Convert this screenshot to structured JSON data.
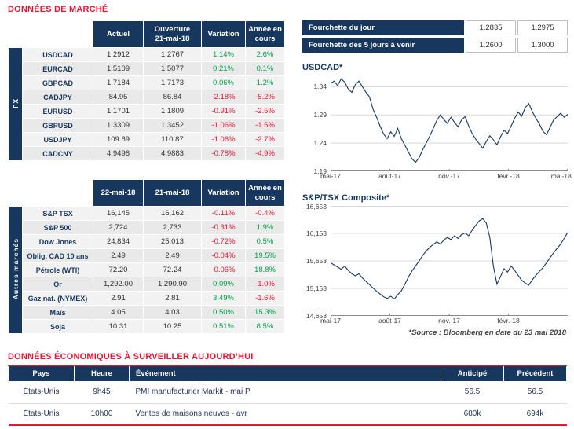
{
  "page": {
    "market_title": "DONNÉES DE MARCHÉ",
    "econ_title": "DONNÉES ÉCONOMIQUES À SURVEILLER AUJOURD’HUI",
    "source_note": "*Source : Bloomberg en date du 23 mai 2018"
  },
  "colors": {
    "navy": "#17375E",
    "red": "#E31837",
    "positive": "#00A04A",
    "negative": "#E31837",
    "grid": "#D9D9D9",
    "line": "#17375E"
  },
  "fx_table": {
    "side_label": "FX",
    "headers": [
      "Actuel",
      "Ouverture\n21-mai-18",
      "Variation",
      "Année en\ncours"
    ],
    "rows": [
      {
        "label": "USDCAD",
        "c1": "1.2912",
        "c2": "1.2767",
        "variation": "1.14%",
        "ytd": "2.6%"
      },
      {
        "label": "EURCAD",
        "c1": "1.5109",
        "c2": "1.5077",
        "variation": "0.21%",
        "ytd": "0.1%"
      },
      {
        "label": "GBPCAD",
        "c1": "1.7184",
        "c2": "1.7173",
        "variation": "0.06%",
        "ytd": "1.2%"
      },
      {
        "label": "CADJPY",
        "c1": "84.95",
        "c2": "86.84",
        "variation": "-2.18%",
        "ytd": "-5.2%"
      },
      {
        "label": "EURUSD",
        "c1": "1.1701",
        "c2": "1.1809",
        "variation": "-0.91%",
        "ytd": "-2.5%"
      },
      {
        "label": "GBPUSD",
        "c1": "1.3309",
        "c2": "1.3452",
        "variation": "-1.06%",
        "ytd": "-1.5%"
      },
      {
        "label": "USDJPY",
        "c1": "109.69",
        "c2": "110.87",
        "variation": "-1.06%",
        "ytd": "-2.7%"
      },
      {
        "label": "CADCNY",
        "c1": "4.9496",
        "c2": "4.9883",
        "variation": "-0.78%",
        "ytd": "-4.9%"
      }
    ]
  },
  "markets_table": {
    "side_label": "Autres marchés",
    "headers": [
      "22-mai-18",
      "21-mai-18",
      "Variation",
      "Année en\ncours"
    ],
    "rows": [
      {
        "label": "S&P TSX",
        "c1": "16,145",
        "c2": "16,162",
        "variation": "-0.11%",
        "ytd": "-0.4%"
      },
      {
        "label": "S&P 500",
        "c1": "2,724",
        "c2": "2,733",
        "variation": "-0.31%",
        "ytd": "1.9%"
      },
      {
        "label": "Dow Jones",
        "c1": "24,834",
        "c2": "25,013",
        "variation": "-0.72%",
        "ytd": "0.5%"
      },
      {
        "label": "Oblig. CAD 10 ans",
        "c1": "2.49",
        "c2": "2.49",
        "variation": "-0.04%",
        "ytd": "19.5%"
      },
      {
        "label": "Pétrole (WTI)",
        "c1": "72.20",
        "c2": "72.24",
        "variation": "-0.06%",
        "ytd": "18.8%"
      },
      {
        "label": "Or",
        "c1": "1,292.00",
        "c2": "1,290.90",
        "variation": "0.09%",
        "ytd": "-1.0%"
      },
      {
        "label": "Gaz nat. (NYMEX)",
        "c1": "2.91",
        "c2": "2.81",
        "variation": "3.49%",
        "ytd": "-1.6%"
      },
      {
        "label": "Maïs",
        "c1": "4.05",
        "c2": "4.03",
        "variation": "0.50%",
        "ytd": "15.3%"
      },
      {
        "label": "Soja",
        "c1": "10.31",
        "c2": "10.25",
        "variation": "0.51%",
        "ytd": "8.5%"
      }
    ]
  },
  "ranges": [
    {
      "label": "Fourchette du jour",
      "low": "1.2835",
      "high": "1.2975"
    },
    {
      "label": "Fourchette des 5 jours à venir",
      "low": "1.2600",
      "high": "1.3000"
    }
  ],
  "chart_data": [
    {
      "type": "line",
      "title": "USDCAD*",
      "ylabel": "",
      "xlabel": "",
      "ylim": [
        1.19,
        1.36
      ],
      "y_ticks": [
        {
          "label": "1.34",
          "v": 1.34
        },
        {
          "label": "1.29",
          "v": 1.29
        },
        {
          "label": "1.24",
          "v": 1.24
        },
        {
          "label": "1.19",
          "v": 1.19
        }
      ],
      "x_ticks": [
        {
          "label": "mai-17",
          "pos": 0
        },
        {
          "label": "août-17",
          "pos": 0.25
        },
        {
          "label": "nov.-17",
          "pos": 0.5
        },
        {
          "label": "févr.-18",
          "pos": 0.75
        },
        {
          "label": "mai-18",
          "pos": 1
        }
      ],
      "values": [
        1.346,
        1.35,
        1.342,
        1.354,
        1.348,
        1.336,
        1.33,
        1.344,
        1.35,
        1.34,
        1.33,
        1.322,
        1.3,
        1.286,
        1.27,
        1.256,
        1.248,
        1.26,
        1.252,
        1.266,
        1.248,
        1.236,
        1.224,
        1.212,
        1.206,
        1.214,
        1.228,
        1.24,
        1.252,
        1.266,
        1.28,
        1.29,
        1.282,
        1.275,
        1.286,
        1.277,
        1.269,
        1.281,
        1.287,
        1.271,
        1.257,
        1.247,
        1.239,
        1.231,
        1.243,
        1.253,
        1.246,
        1.237,
        1.251,
        1.263,
        1.257,
        1.27,
        1.284,
        1.295,
        1.288,
        1.303,
        1.31,
        1.296,
        1.284,
        1.274,
        1.261,
        1.255,
        1.268,
        1.281,
        1.287,
        1.293,
        1.286,
        1.291
      ]
    },
    {
      "type": "line",
      "title": "S&P/TSX Composite*",
      "ylabel": "",
      "xlabel": "",
      "ylim": [
        14653,
        16653
      ],
      "y_ticks": [
        {
          "label": "16,653",
          "v": 16653
        },
        {
          "label": "16,153",
          "v": 16153
        },
        {
          "label": "15,653",
          "v": 15653
        },
        {
          "label": "15,153",
          "v": 15153
        },
        {
          "label": "14,653",
          "v": 14653
        }
      ],
      "x_ticks": [
        {
          "label": "mai-17",
          "pos": 0
        },
        {
          "label": "août-17",
          "pos": 0.25
        },
        {
          "label": "nov.-17",
          "pos": 0.5
        },
        {
          "label": "févr.-18",
          "pos": 0.75
        }
      ],
      "values": [
        15620,
        15580,
        15540,
        15500,
        15560,
        15480,
        15420,
        15380,
        15420,
        15340,
        15280,
        15220,
        15160,
        15100,
        15050,
        15000,
        14970,
        15010,
        14960,
        15040,
        15110,
        15230,
        15360,
        15470,
        15560,
        15650,
        15750,
        15830,
        15900,
        15950,
        16000,
        15960,
        16030,
        16080,
        16040,
        16110,
        16060,
        16130,
        16160,
        16110,
        16210,
        16300,
        16380,
        16420,
        16340,
        16080,
        15560,
        15230,
        15370,
        15510,
        15450,
        15560,
        15480,
        15390,
        15300,
        15250,
        15210,
        15310,
        15390,
        15460,
        15530,
        15620,
        15710,
        15800,
        15880,
        15960,
        16060,
        16170
      ]
    }
  ],
  "econ_table": {
    "headers": [
      "Pays",
      "Heure",
      "Événement",
      "Anticipé",
      "Précédent"
    ],
    "rows": [
      {
        "pays": "États-Unis",
        "heure": "9h45",
        "evenement": "PMI manufacturier Markit - mai P",
        "anticipe": "56.5",
        "precedent": "56.5"
      },
      {
        "pays": "États-Unis",
        "heure": "10h00",
        "evenement": "Ventes de maisons neuves - avr",
        "anticipe": "680k",
        "precedent": "694k"
      }
    ]
  }
}
